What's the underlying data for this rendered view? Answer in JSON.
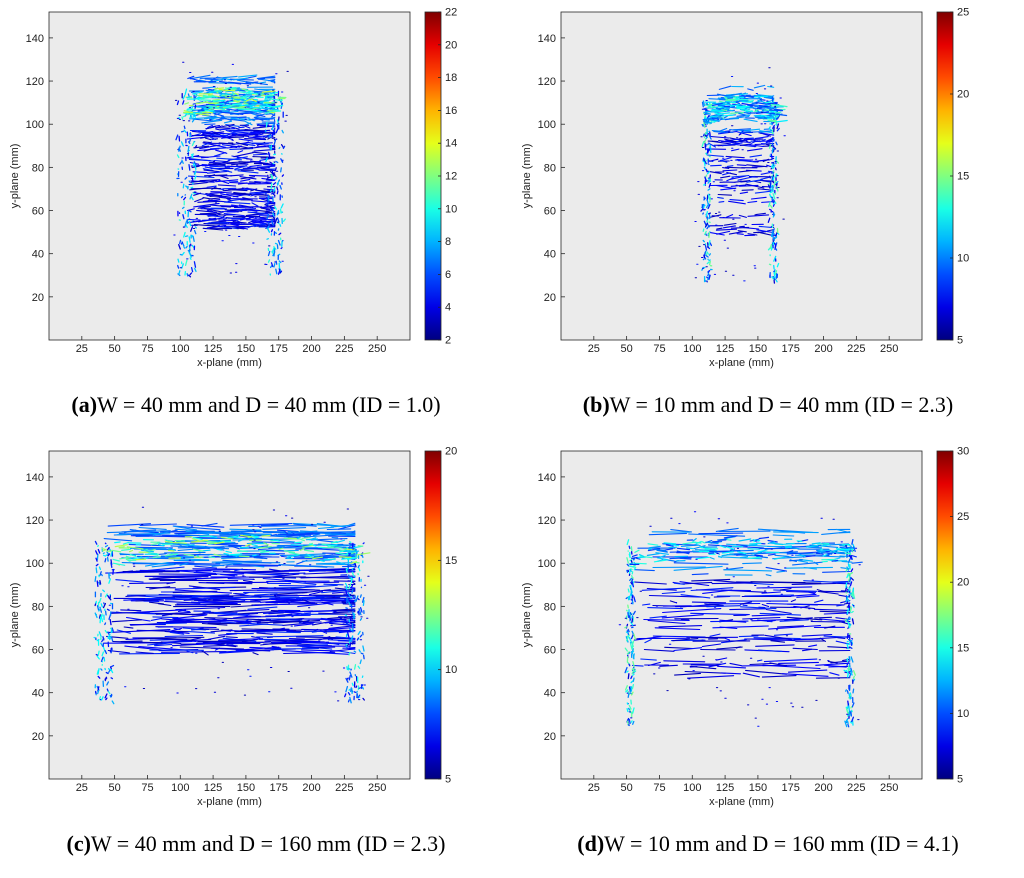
{
  "chart_data": [
    {
      "type": "heatmap",
      "panel": "a",
      "caption": {
        "label": "(a)",
        "text": "W = 40 mm and D = 40 mm (ID = 1.0)"
      },
      "xlabel": "x-plane (mm)",
      "ylabel": "y-plane (mm)",
      "xlim": [
        0,
        275
      ],
      "ylim": [
        0,
        152
      ],
      "xticks": [
        25,
        50,
        75,
        100,
        125,
        150,
        175,
        200,
        225,
        250
      ],
      "yticks": [
        20,
        40,
        60,
        80,
        100,
        120,
        140
      ],
      "colorbar": {
        "min": 2,
        "max": 22,
        "ticks": [
          2,
          4,
          6,
          8,
          10,
          12,
          14,
          16,
          18,
          20,
          22
        ]
      },
      "shape": "arch",
      "x_left": 105,
      "x_right": 172,
      "y_bottom": 30,
      "y_top": 122,
      "peak": 14
    },
    {
      "type": "heatmap",
      "panel": "b",
      "caption": {
        "label": "(b)",
        "text": "W = 10 mm and D = 40 mm (ID = 2.3)"
      },
      "xlabel": "x-plane (mm)",
      "ylabel": "y-plane (mm)",
      "xlim": [
        0,
        275
      ],
      "ylim": [
        0,
        152
      ],
      "xticks": [
        25,
        50,
        75,
        100,
        125,
        150,
        175,
        200,
        225,
        250
      ],
      "yticks": [
        20,
        40,
        60,
        80,
        100,
        120,
        140
      ],
      "colorbar": {
        "min": 5,
        "max": 25,
        "ticks": [
          5,
          10,
          15,
          20,
          25
        ]
      },
      "shape": "columns",
      "x_left": 111,
      "x_right": 162,
      "y_bottom": 27,
      "y_top": 119,
      "peak": 16
    },
    {
      "type": "heatmap",
      "panel": "c",
      "caption": {
        "label": "(c)",
        "text": "W = 40 mm and D = 160 mm (ID = 2.3)"
      },
      "xlabel": "x-plane (mm)",
      "ylabel": "y-plane (mm)",
      "xlim": [
        0,
        275
      ],
      "ylim": [
        0,
        152
      ],
      "xticks": [
        25,
        50,
        75,
        100,
        125,
        150,
        175,
        200,
        225,
        250
      ],
      "yticks": [
        20,
        40,
        60,
        80,
        100,
        120,
        140
      ],
      "colorbar": {
        "min": 5,
        "max": 20,
        "ticks": [
          5,
          10,
          15,
          20
        ]
      },
      "shape": "arch",
      "x_left": 42,
      "x_right": 233,
      "y_bottom": 36,
      "y_top": 118,
      "peak": 13
    },
    {
      "type": "heatmap",
      "panel": "d",
      "caption": {
        "label": "(d)",
        "text": "W = 10 mm and D = 160 mm (ID = 4.1)"
      },
      "xlabel": "x-plane (mm)",
      "ylabel": "y-plane (mm)",
      "xlim": [
        0,
        275
      ],
      "ylim": [
        0,
        152
      ],
      "xticks": [
        25,
        50,
        75,
        100,
        125,
        150,
        175,
        200,
        225,
        250
      ],
      "yticks": [
        20,
        40,
        60,
        80,
        100,
        120,
        140
      ],
      "colorbar": {
        "min": 5,
        "max": 30,
        "ticks": [
          5,
          10,
          15,
          20,
          25,
          30
        ]
      },
      "shape": "columns",
      "x_left": 53,
      "x_right": 220,
      "y_bottom": 24,
      "y_top": 117,
      "peak": 14
    }
  ],
  "colors": {
    "plot_background": "#ebebeb",
    "axis": "#262626"
  }
}
